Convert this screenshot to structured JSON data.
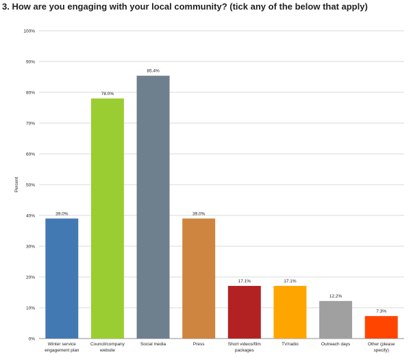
{
  "chart_data": {
    "type": "bar",
    "title": "3. How are you engaging with your local community? (tick any of the below that apply)",
    "ylabel": "Percent",
    "xlabel": "",
    "ylim": [
      0,
      100
    ],
    "yticks": [
      "0%",
      "10%",
      "20%",
      "30%",
      "40%",
      "50%",
      "60%",
      "70%",
      "80%",
      "90%",
      "100%"
    ],
    "grid": true,
    "legend": "none",
    "categories": [
      [
        "Winter service",
        "engagement plan"
      ],
      [
        "Council/company",
        "website"
      ],
      [
        "Social media"
      ],
      [
        "Press"
      ],
      [
        "Short videos/film",
        "packages"
      ],
      [
        "TV/radio"
      ],
      [
        "Outreach days"
      ],
      [
        "Other (please",
        "specify)"
      ]
    ],
    "values": [
      39.0,
      78.0,
      85.4,
      39.0,
      17.1,
      17.1,
      12.2,
      7.3
    ],
    "value_labels": [
      "39.0%",
      "78.0%",
      "85.4%",
      "39.0%",
      "17.1%",
      "17.1%",
      "12.2%",
      "7.3%"
    ],
    "colors": [
      "#4279b3",
      "#9acd32",
      "#6e7f8e",
      "#cd853f",
      "#b22222",
      "#ffa500",
      "#a0a0a0",
      "#ff4500"
    ]
  }
}
